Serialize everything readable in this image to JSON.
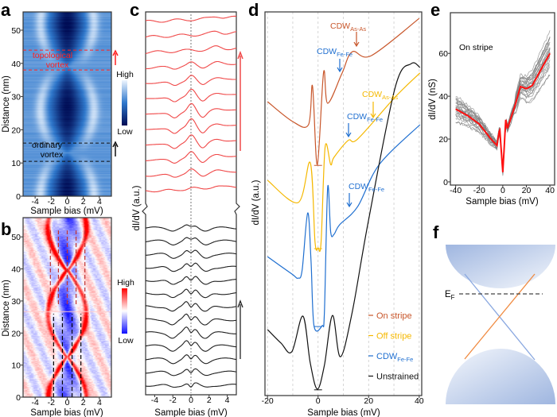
{
  "panel_labels": {
    "a": "a",
    "b": "b",
    "c": "c",
    "d": "d",
    "e": "e",
    "f": "f"
  },
  "chart_data": [
    {
      "panel": "a",
      "type": "heatmap",
      "xlabel": "Sample bias (mV)",
      "ylabel": "Distance (nm)",
      "xlim": [
        -5.5,
        5.5
      ],
      "ylim": [
        0,
        55.5
      ],
      "xticks": [
        -4,
        -2,
        0,
        2,
        4
      ],
      "yticks": [
        0,
        10,
        20,
        30,
        40,
        50
      ],
      "colormap": [
        "#000c55",
        "#2f78cc",
        "#eef6ff"
      ],
      "colorbar": {
        "high": "High",
        "low": "Low"
      },
      "annotations": [
        {
          "lines": [
            "topological",
            "vortex"
          ],
          "color": "#ff2020",
          "range_nm": [
            38,
            44
          ]
        },
        {
          "lines": [
            "ordinary",
            "vortex"
          ],
          "color": "#000000",
          "range_nm": [
            10.5,
            16
          ]
        }
      ]
    },
    {
      "panel": "b",
      "type": "heatmap",
      "xlabel": "Sample bias (mV)",
      "ylabel": "Distance (nm)",
      "xlim": [
        -5.5,
        5.5
      ],
      "ylim": [
        0,
        56
      ],
      "xticks": [
        -4,
        -2,
        0,
        2,
        4
      ],
      "yticks": [
        0,
        10,
        20,
        30,
        40,
        50
      ],
      "colormap": [
        "#1010ff",
        "#ffffff",
        "#ff0000"
      ],
      "colorbar": {
        "high": "High",
        "low": "Low"
      },
      "guide_lines": [
        {
          "color": "#c03030",
          "bias": [
            -2.1,
            -1.1,
            0,
            1.1,
            2.2
          ],
          "range_nm": [
            29,
            52
          ]
        },
        {
          "color": "#000000",
          "bias": [
            -1.7,
            -0.6,
            0.6,
            1.7
          ],
          "range_nm": [
            0,
            26
          ]
        }
      ]
    },
    {
      "panel": "c",
      "type": "line",
      "xlabel": "Sample bias (mV)",
      "ylabel": "dI/dV (a.u.)",
      "xlim": [
        -5,
        5
      ],
      "xticks": [
        -4,
        -2,
        0,
        2,
        4
      ],
      "groups": [
        {
          "color": "#f04848",
          "count": 12
        },
        {
          "color": "#202020",
          "count": 13
        }
      ]
    },
    {
      "panel": "d",
      "type": "line",
      "xlabel": "Sample bias (mV)",
      "ylabel": "dI/dV (a.u.)",
      "xlim": [
        -21,
        41
      ],
      "ylim": [
        0,
        100
      ],
      "xticks": [
        -20,
        0,
        20,
        40
      ],
      "grid": "vertical dashed every 10 mV",
      "legend_position": "bottom-right",
      "series": [
        {
          "name": "On stripe",
          "color": "#c8562a",
          "x": [
            -20,
            -10,
            -3.8,
            -2.2,
            -0.3,
            2.2,
            3.8,
            9.4,
            13.5,
            21,
            40
          ],
          "y": [
            76.6,
            71.4,
            70.6,
            80.7,
            60.2,
            84.3,
            76.2,
            83.9,
            89.6,
            88.6,
            98.3
          ]
        },
        {
          "name": "Off stripe",
          "color": "#f5b800",
          "x": [
            -20,
            -7.9,
            -3.1,
            -1.2,
            0,
            1.2,
            2.8,
            5,
            6.3,
            11.9,
            15.7,
            30.5,
            40.3
          ],
          "y": [
            56.1,
            50.3,
            60.7,
            40,
            38.5,
            40,
            64.8,
            60.2,
            62.1,
            66.5,
            66.9,
            77.8,
            84.1
          ]
        },
        {
          "name": {
            "main": "CDW",
            "sub": "Fe-Fe"
          },
          "color": "#1f6fd0",
          "x": [
            -20,
            -10.4,
            -7.9,
            -6.3,
            -4.1,
            -2.8,
            -1.6,
            1.6,
            2.5,
            3.8,
            5,
            6.3,
            8.5,
            15.7,
            24.2,
            40.3
          ],
          "y": [
            36.2,
            31.7,
            30.6,
            32.7,
            47.6,
            35.4,
            18.2,
            18.2,
            21.7,
            54.2,
            42.6,
            42,
            44.5,
            49.3,
            60.2,
            70.6
          ]
        },
        {
          "name": "Unstrained",
          "color": "#111111",
          "x": [
            -20,
            -14.7,
            -10.4,
            -6,
            -3.1,
            -0.3,
            2.5,
            5.7,
            8.8,
            13.5,
            19.8,
            30.5,
            36.8,
            40.3
          ],
          "y": [
            17.2,
            13.7,
            11.4,
            20.7,
            8.5,
            1.7,
            7.9,
            20.9,
            10.1,
            21.7,
            45.1,
            80.3,
            86.5,
            85.5
          ]
        }
      ],
      "annotations": [
        {
          "main": "CDW",
          "sub": "As-As",
          "color": "#c8562a",
          "bias": 15
        },
        {
          "main": "CDW",
          "sub": "Fe-Fe",
          "color": "#1f6fd0",
          "bias": 8.5
        },
        {
          "main": "CDW",
          "sub": "As-As",
          "color": "#f5b800",
          "bias": 21.5
        },
        {
          "main": "CDW",
          "sub": "Fe-Fe",
          "color": "#1f6fd0",
          "bias": 12
        },
        {
          "main": "CDW",
          "sub": "Fe-Fe",
          "color": "#1f6fd0",
          "bias": 12.3
        }
      ]
    },
    {
      "panel": "e",
      "type": "line",
      "title": "On stripe",
      "xlabel": "Sample bias (mV)",
      "ylabel": "dI/dV (nS)",
      "xlim": [
        -44.5,
        44
      ],
      "ylim": [
        -1.5,
        79
      ],
      "xticks": [
        -40,
        -20,
        0,
        20,
        40
      ],
      "yticks": [
        0,
        20,
        40,
        60
      ],
      "series": [
        {
          "role": "average",
          "color": "#ff1010",
          "x": [
            -40,
            -30,
            -20,
            -10,
            -5,
            -2.6,
            0,
            2.5,
            4,
            10,
            15,
            20,
            25,
            32,
            40
          ],
          "y": [
            34,
            31,
            27,
            20,
            17,
            25,
            4.5,
            29,
            25,
            35,
            44.5,
            43.5,
            45,
            52,
            60
          ]
        },
        {
          "role": "individual spectra",
          "color": "#808080"
        }
      ]
    },
    {
      "panel": "f",
      "type": "diagram",
      "fermi_label": {
        "main": "E",
        "sub": "F"
      },
      "colors": {
        "bands": "#9fb6e0",
        "blue_branch": "#8aa8e0",
        "orange_branch": "#f08a40"
      }
    }
  ]
}
